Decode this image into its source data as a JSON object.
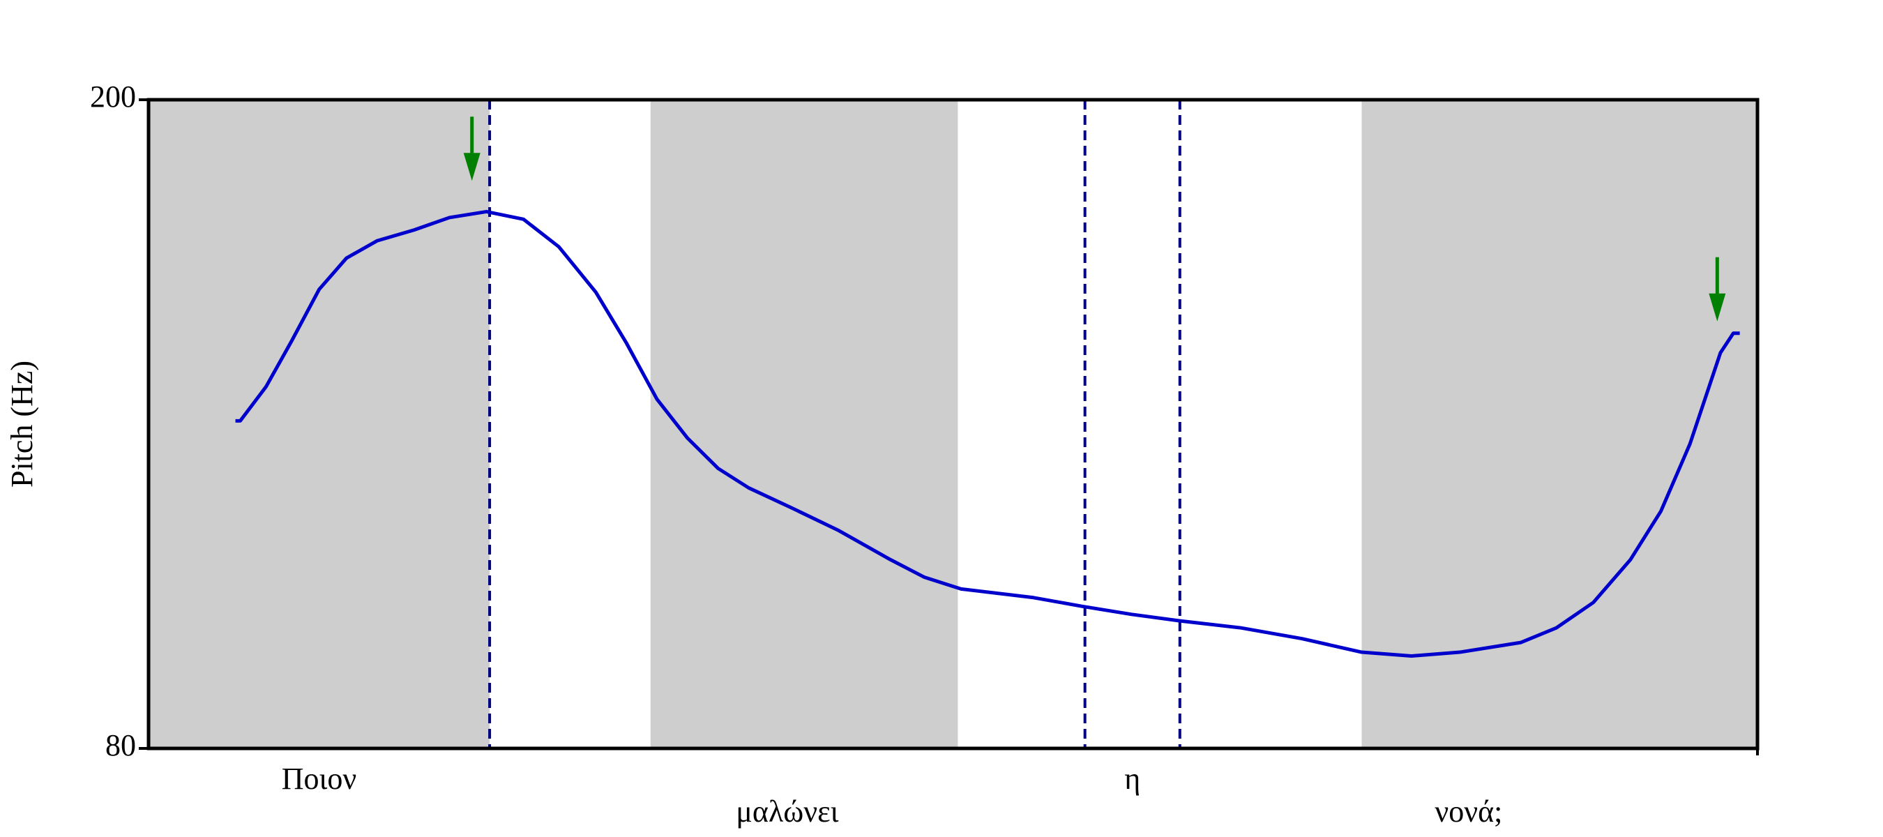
{
  "chart_data": {
    "type": "line",
    "y_label": "Pitch (Hz)",
    "ylim": [
      80,
      200
    ],
    "yticks": [
      80,
      200
    ],
    "xlim": [
      0,
      1
    ],
    "x": [
      0.054,
      0.057,
      0.073,
      0.089,
      0.106,
      0.123,
      0.142,
      0.165,
      0.187,
      0.21,
      0.233,
      0.255,
      0.278,
      0.297,
      0.316,
      0.335,
      0.354,
      0.373,
      0.399,
      0.429,
      0.46,
      0.482,
      0.505,
      0.55,
      0.58,
      0.611,
      0.641,
      0.679,
      0.717,
      0.754,
      0.785,
      0.815,
      0.853,
      0.875,
      0.898,
      0.921,
      0.94,
      0.958,
      0.977,
      0.985,
      0.989
    ],
    "series": [
      {
        "color": "#0000cc",
        "values": [
          140.6,
          140.6,
          146.9,
          155.4,
          164.9,
          170.7,
          173.9,
          175.9,
          178.2,
          179.3,
          177.9,
          172.8,
          164.4,
          155.0,
          144.6,
          137.4,
          131.8,
          128.2,
          124.6,
          120.3,
          115.1,
          111.7,
          109.5,
          107.9,
          106.3,
          104.8,
          103.6,
          102.3,
          100.3,
          97.8,
          97.1,
          97.8,
          99.6,
          102.3,
          107.0,
          114.9,
          123.9,
          136.3,
          153.2,
          156.8,
          156.8
        ]
      }
    ],
    "shaded": [
      [
        0,
        0.212
      ],
      [
        0.312,
        0.503
      ],
      [
        0.754,
        1
      ]
    ],
    "shade_color": "#cecece",
    "boundaries": [
      0.212,
      0.582,
      0.641
    ],
    "boundary_color": "#000080",
    "words": [
      "Ποιον",
      "μαλώνει",
      "η",
      "νονά;"
    ],
    "arrows": [
      {
        "x": 0.201,
        "y": 185
      },
      {
        "x": 0.975,
        "y": 159
      }
    ],
    "arrow_color": "#008000"
  }
}
